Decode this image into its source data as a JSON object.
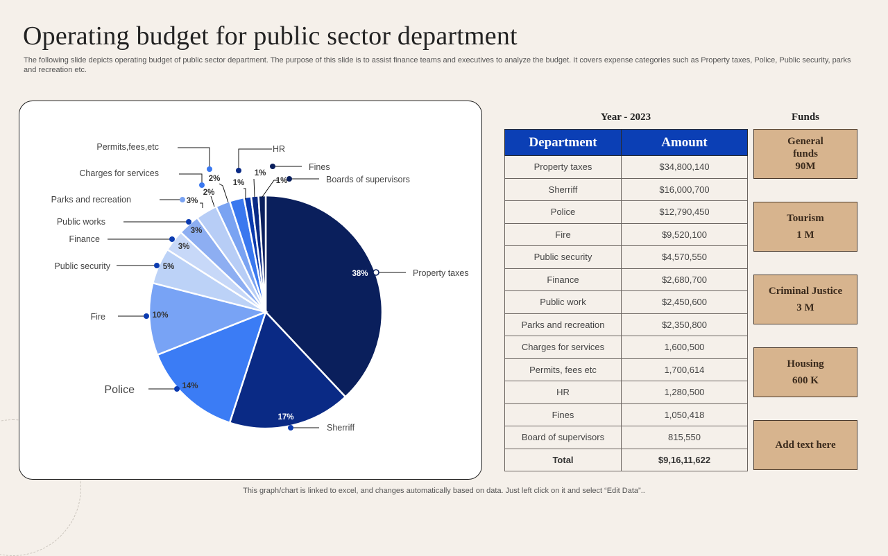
{
  "page": {
    "title": "Operating budget for public sector department",
    "subtitle": "The following slide depicts operating budget  of public sector department. The purpose of this slide is to assist finance teams and executives to analyze the budget. It covers expense categories such as Property taxes, Police, Public security, parks and recreation etc.",
    "footer": "This graph/chart is linked to excel, and changes automatically based on data. Just left click on it and select “Edit Data”.."
  },
  "chart_data": {
    "type": "pie",
    "title": "",
    "legend": "none (leader-line labels)",
    "slices": [
      {
        "label": "Property taxes",
        "value": 38,
        "percent_label": "38%",
        "color": "#0a1f5c"
      },
      {
        "label": "Sherriff",
        "value": 17,
        "percent_label": "17%",
        "color": "#0a2a85"
      },
      {
        "label": "Police",
        "value": 14,
        "percent_label": "14%",
        "color": "#3b7cf5"
      },
      {
        "label": "Fire",
        "value": 10,
        "percent_label": "10%",
        "color": "#78a3f5"
      },
      {
        "label": "Public security",
        "value": 5,
        "percent_label": "5%",
        "color": "#bcd2f7"
      },
      {
        "label": "Finance",
        "value": 3,
        "percent_label": "3%",
        "color": "#c7d8f8"
      },
      {
        "label": "Public works",
        "value": 3,
        "percent_label": "3%",
        "color": "#8daef2"
      },
      {
        "label": "Parks and recreation",
        "value": 3,
        "percent_label": "3%",
        "color": "#b7cdf6"
      },
      {
        "label": "Charges for services",
        "value": 2,
        "percent_label": "2%",
        "color": "#7aa3f2"
      },
      {
        "label": "Permits,fees,etc",
        "value": 2,
        "percent_label": "2%",
        "color": "#3a78ef"
      },
      {
        "label": "HR",
        "value": 1,
        "percent_label": "1%",
        "color": "#0b3bb0"
      },
      {
        "label": "Fines",
        "value": 1,
        "percent_label": "1%",
        "color": "#0a2a85"
      },
      {
        "label": "Boards of supervisors",
        "value": 1,
        "percent_label": "1%",
        "color": "#0a1f5c"
      }
    ]
  },
  "table": {
    "year_label": "Year - 2023",
    "headers": [
      "Department",
      "Amount"
    ],
    "rows": [
      [
        "Property taxes",
        "$34,800,140"
      ],
      [
        "Sherriff",
        "$16,000,700"
      ],
      [
        "Police",
        "$12,790,450"
      ],
      [
        "Fire",
        "$9,520,100"
      ],
      [
        "Public security",
        "$4,570,550"
      ],
      [
        "Finance",
        "$2,680,700"
      ],
      [
        "Public work",
        "$2,450,600"
      ],
      [
        "Parks and recreation",
        "$2,350,800"
      ],
      [
        "Charges for services",
        "1,600,500"
      ],
      [
        "Permits, fees etc",
        "1,700,614"
      ],
      [
        "HR",
        "1,280,500"
      ],
      [
        "Fines",
        "1,050,418"
      ],
      [
        "Board of supervisors",
        "815,550"
      ]
    ],
    "total": [
      "Total",
      "$9,16,11,622"
    ]
  },
  "funds": {
    "label": "Funds",
    "boxes": [
      {
        "name": "General funds",
        "value": "90M"
      },
      {
        "name": "Tourism",
        "value": "1 M"
      },
      {
        "name": "Criminal Justice",
        "value": "3 M"
      },
      {
        "name": "Housing",
        "value": "600 K"
      },
      {
        "name": "Add text here",
        "value": ""
      }
    ]
  }
}
